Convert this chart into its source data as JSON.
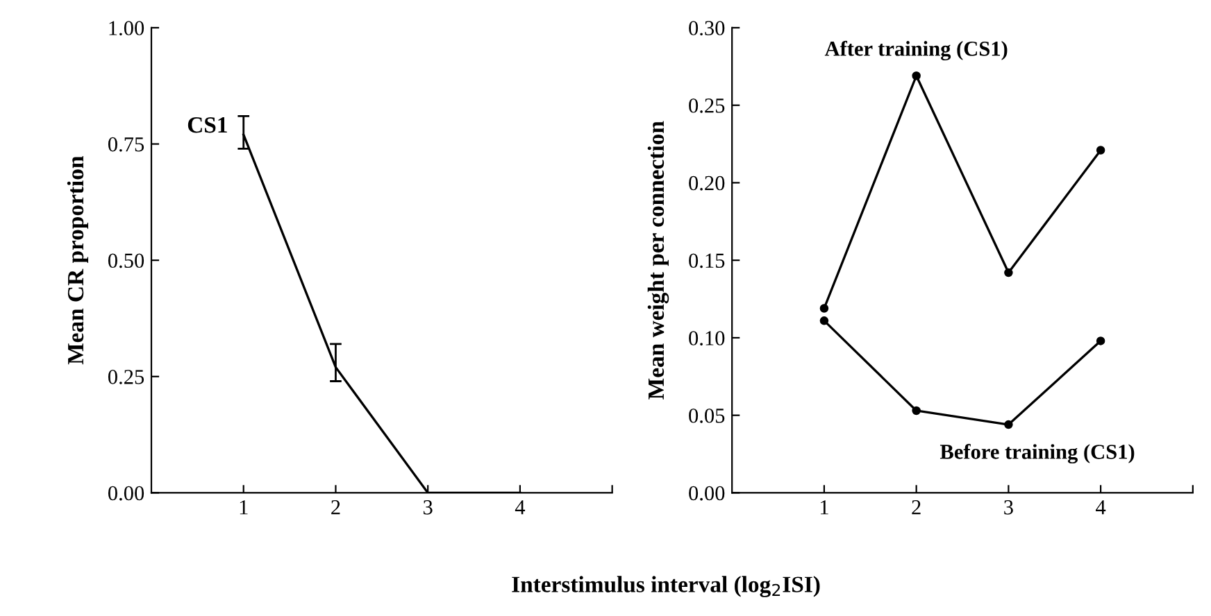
{
  "chart_data": [
    {
      "type": "line",
      "ylabel": "Mean CR proportion",
      "xlabel": "Interstimulus interval (log$_{2}$ISI)",
      "x": [
        1,
        2,
        3,
        4
      ],
      "xlim": [
        0,
        5
      ],
      "xticks": [
        1,
        2,
        3,
        4,
        {
          "value": 5,
          "label": null
        }
      ],
      "ylim": [
        0,
        1
      ],
      "yticks": [
        {
          "value": 0,
          "label": "0.00"
        },
        {
          "value": 0.25,
          "label": "0.25"
        },
        {
          "value": 0.5,
          "label": "0.50"
        },
        {
          "value": 0.75,
          "label": "0.75"
        },
        {
          "value": 1,
          "label": "1.00"
        }
      ],
      "marker": "none",
      "grid": false,
      "series": [
        {
          "name": "CS1",
          "color": "#000000",
          "values": [
            0.77,
            0.27,
            0,
            0
          ],
          "errors": [
            [
              0.74,
              0.81
            ],
            [
              0.24,
              0.32
            ],
            null,
            null
          ]
        }
      ]
    },
    {
      "type": "line",
      "ylabel": "Mean weight per connection",
      "x": [
        1,
        2,
        3,
        4
      ],
      "xlim": [
        0,
        5
      ],
      "xticks": [
        1,
        2,
        3,
        4,
        {
          "value": 5,
          "label": null
        }
      ],
      "ylim": [
        0,
        0.3
      ],
      "yticks": [
        {
          "value": 0,
          "label": "0.00"
        },
        {
          "value": 0.05,
          "label": "0.05"
        },
        {
          "value": 0.1,
          "label": "0.10"
        },
        {
          "value": 0.15,
          "label": "0.15"
        },
        {
          "value": 0.2,
          "label": "0.20"
        },
        {
          "value": 0.25,
          "label": "0.25"
        },
        {
          "value": 0.3,
          "label": "0.30"
        }
      ],
      "marker": "circle",
      "grid": false,
      "series": [
        {
          "name": "After training (CS1)",
          "color": "#000000",
          "values": [
            0.119,
            0.269,
            0.142,
            0.221
          ]
        },
        {
          "name": "Before training (CS1)",
          "color": "#000000",
          "values": [
            0.111,
            0.053,
            0.044,
            0.098
          ]
        }
      ]
    }
  ]
}
